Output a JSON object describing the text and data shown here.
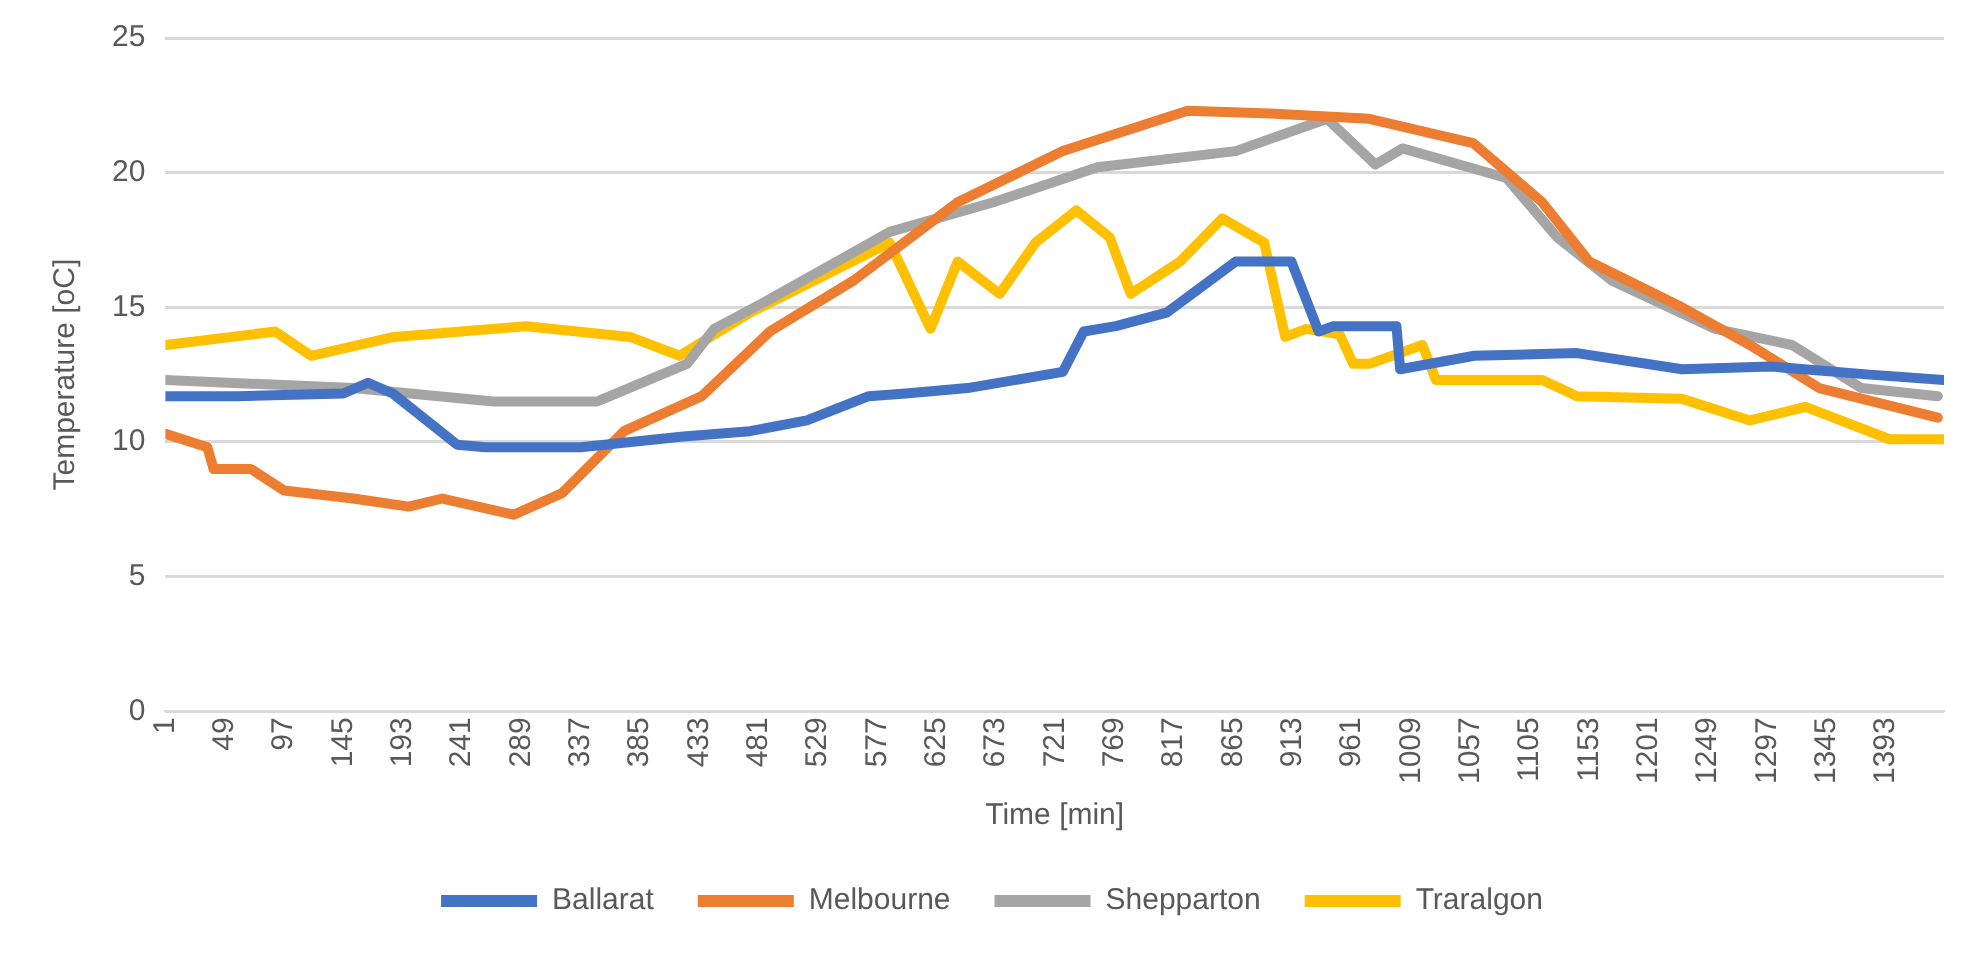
{
  "chart_data": {
    "type": "line",
    "xlabel": "Time [min]",
    "ylabel": "Temperature [oC]",
    "xlim": [
      1,
      1440
    ],
    "xticks": [
      1,
      49,
      97,
      145,
      193,
      241,
      289,
      337,
      385,
      433,
      481,
      529,
      577,
      625,
      673,
      721,
      769,
      817,
      865,
      913,
      961,
      1009,
      1057,
      1105,
      1153,
      1201,
      1249,
      1297,
      1345,
      1393
    ],
    "ylim": [
      0,
      25
    ],
    "yticks": [
      0,
      5,
      10,
      15,
      20,
      25
    ],
    "grid": "y",
    "legend": "bottom",
    "marker": "none",
    "line_style": "solid",
    "series": [
      {
        "name": "Ballarat",
        "color": "#4472c4",
        "x": [
          1,
          60,
          145,
          165,
          185,
          237,
          260,
          337,
          420,
          474,
          520,
          570,
          600,
          650,
          727,
          744,
          770,
          811,
          867,
          912,
          934,
          946,
          997,
          1000,
          1060,
          1143,
          1228,
          1300,
          1380,
          1440
        ],
        "values": [
          11.7,
          11.7,
          11.8,
          12.2,
          11.8,
          9.9,
          9.8,
          9.8,
          10.2,
          10.4,
          10.8,
          11.7,
          11.8,
          12.0,
          12.6,
          14.1,
          14.3,
          14.8,
          16.7,
          16.7,
          14.1,
          14.3,
          14.3,
          12.7,
          13.2,
          13.3,
          12.7,
          12.8,
          12.5,
          12.3
        ]
      },
      {
        "name": "Melbourne",
        "color": "#ed7d31",
        "x": [
          1,
          35,
          40,
          70,
          97,
          153,
          198,
          225,
          283,
          322,
          372,
          435,
          490,
          558,
          642,
          727,
          828,
          895,
          975,
          1059,
          1115,
          1153,
          1228,
          1283,
          1339,
          1435
        ],
        "values": [
          10.3,
          9.8,
          9.0,
          9.0,
          8.2,
          7.9,
          7.6,
          7.9,
          7.3,
          8.1,
          10.4,
          11.7,
          14.1,
          16.0,
          18.9,
          20.8,
          22.3,
          22.2,
          22.0,
          21.1,
          18.9,
          16.7,
          15.0,
          13.6,
          12.0,
          10.9
        ]
      },
      {
        "name": "Shepparton",
        "color": "#a5a5a5",
        "x": [
          1,
          153,
          266,
          350,
          423,
          445,
          490,
          587,
          671,
          755,
          867,
          941,
          980,
          1002,
          1086,
          1127,
          1171,
          1255,
          1317,
          1373,
          1435
        ],
        "values": [
          12.3,
          12.0,
          11.5,
          11.5,
          12.9,
          14.2,
          15.3,
          17.8,
          18.9,
          20.2,
          20.8,
          22.0,
          20.3,
          20.9,
          19.8,
          17.6,
          16.0,
          14.2,
          13.6,
          12.0,
          11.7
        ]
      },
      {
        "name": "Traralgon",
        "color": "#ffc000",
        "x": [
          1,
          90,
          119,
          186,
          293,
          377,
          417,
          474,
          587,
          620,
          642,
          676,
          705,
          738,
          765,
          782,
          822,
          856,
          890,
          907,
          924,
          951,
          962,
          975,
          1018,
          1029,
          1115,
          1143,
          1228,
          1283,
          1328,
          1396,
          1440
        ],
        "values": [
          13.6,
          14.1,
          13.2,
          13.9,
          14.3,
          13.9,
          13.2,
          14.8,
          17.4,
          14.2,
          16.7,
          15.5,
          17.4,
          18.6,
          17.6,
          15.5,
          16.7,
          18.3,
          17.4,
          13.9,
          14.2,
          14.0,
          12.9,
          12.9,
          13.6,
          12.3,
          12.3,
          11.7,
          11.6,
          10.8,
          11.3,
          10.1,
          10.1
        ]
      }
    ]
  }
}
